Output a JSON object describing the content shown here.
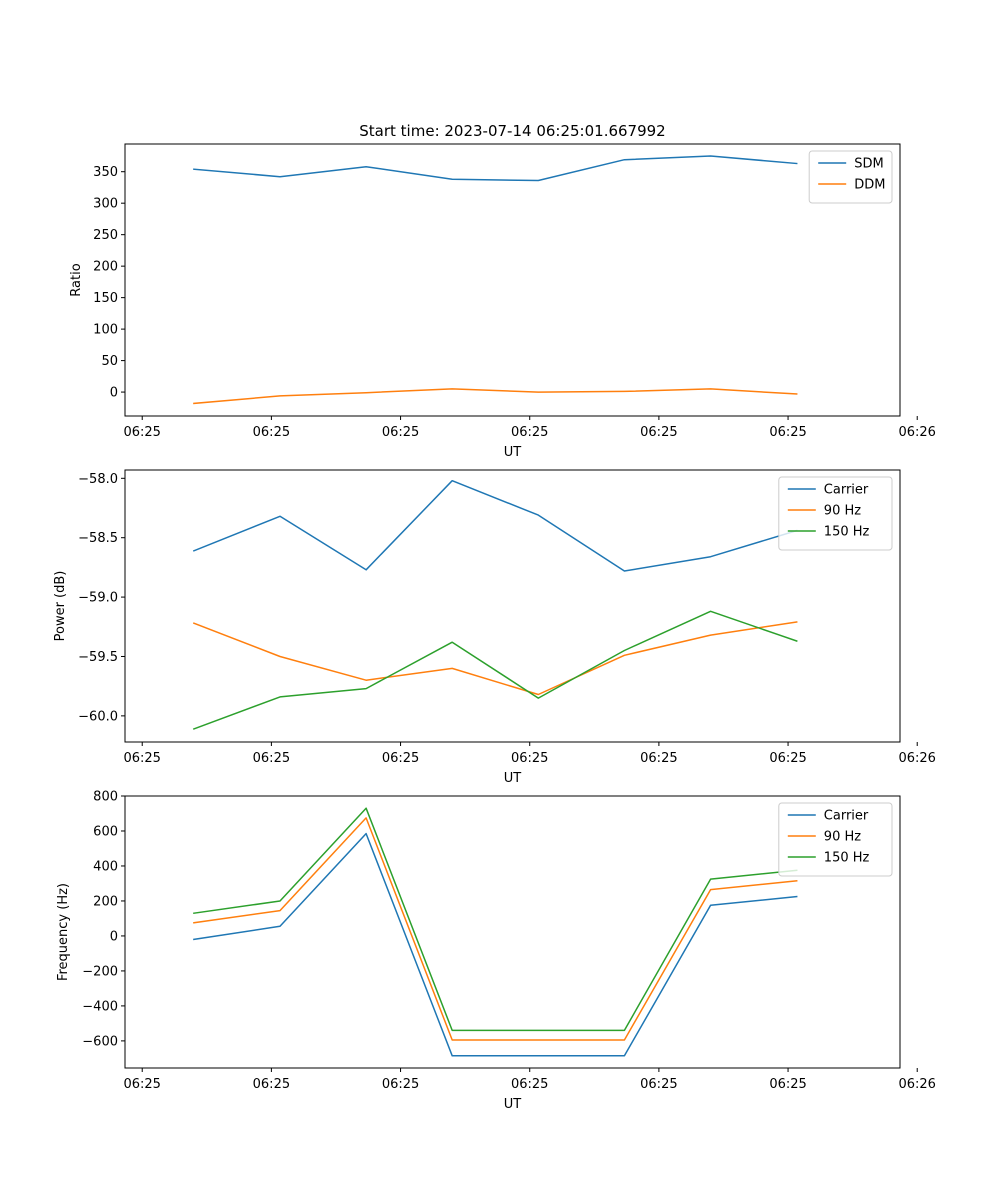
{
  "title": "Start time: 2023-07-14 06:25:01.667992",
  "chart_data": [
    {
      "type": "line",
      "xlabel": "UT",
      "ylabel": "Ratio",
      "x": [
        1,
        2,
        3,
        4,
        5,
        6,
        7,
        8
      ],
      "xlim": [
        0.2,
        9.2
      ],
      "xticks": [
        0.4,
        1.9,
        3.4,
        4.9,
        6.4,
        7.9,
        9.4
      ],
      "xtick_labels": [
        "06:25",
        "06:25",
        "06:25",
        "06:25",
        "06:25",
        "06:25",
        "06:26"
      ],
      "ylim": [
        -38,
        394
      ],
      "yticks": [
        0,
        50,
        100,
        150,
        200,
        250,
        300,
        350
      ],
      "ytick_labels": [
        "0",
        "50",
        "100",
        "150",
        "200",
        "250",
        "300",
        "350"
      ],
      "legend": "top-right",
      "series": [
        {
          "name": "SDM",
          "color": "#1f77b4",
          "values": [
            354,
            342,
            358,
            338,
            336,
            369,
            375,
            363
          ]
        },
        {
          "name": "DDM",
          "color": "#ff7f0e",
          "values": [
            -18,
            -6,
            -1,
            5,
            0,
            1,
            5,
            -3
          ]
        }
      ]
    },
    {
      "type": "line",
      "xlabel": "UT",
      "ylabel": "Power (dB)",
      "x": [
        1,
        2,
        3,
        4,
        5,
        6,
        7,
        8
      ],
      "xlim": [
        0.2,
        9.2
      ],
      "xticks": [
        0.4,
        1.9,
        3.4,
        4.9,
        6.4,
        7.9,
        9.4
      ],
      "xtick_labels": [
        "06:25",
        "06:25",
        "06:25",
        "06:25",
        "06:25",
        "06:25",
        "06:26"
      ],
      "ylim": [
        -60.22,
        -57.93
      ],
      "yticks": [
        -60.0,
        -59.5,
        -59.0,
        -58.5,
        -58.0
      ],
      "ytick_labels": [
        "−60.0",
        "−59.5",
        "−59.0",
        "−58.5",
        "−58.0"
      ],
      "legend": "top-right",
      "series": [
        {
          "name": "Carrier",
          "color": "#1f77b4",
          "values": [
            -58.61,
            -58.32,
            -58.77,
            -58.02,
            -58.31,
            -58.78,
            -58.66,
            -58.44
          ]
        },
        {
          "name": "90 Hz",
          "color": "#ff7f0e",
          "values": [
            -59.22,
            -59.5,
            -59.7,
            -59.6,
            -59.82,
            -59.49,
            -59.32,
            -59.21
          ]
        },
        {
          "name": "150 Hz",
          "color": "#2ca02c",
          "values": [
            -60.11,
            -59.84,
            -59.77,
            -59.38,
            -59.85,
            -59.45,
            -59.12,
            -59.37
          ]
        }
      ]
    },
    {
      "type": "line",
      "xlabel": "UT",
      "ylabel": "Frequency (Hz)",
      "x": [
        1,
        2,
        3,
        4,
        5,
        6,
        7,
        8
      ],
      "xlim": [
        0.2,
        9.2
      ],
      "xticks": [
        0.4,
        1.9,
        3.4,
        4.9,
        6.4,
        7.9,
        9.4
      ],
      "xtick_labels": [
        "06:25",
        "06:25",
        "06:25",
        "06:25",
        "06:25",
        "06:25",
        "06:26"
      ],
      "ylim": [
        -755,
        800
      ],
      "yticks": [
        -600,
        -400,
        -200,
        0,
        200,
        400,
        600,
        800
      ],
      "ytick_labels": [
        "−600",
        "−400",
        "−200",
        "0",
        "200",
        "400",
        "600",
        "800"
      ],
      "legend": "top-right",
      "series": [
        {
          "name": "Carrier",
          "color": "#1f77b4",
          "values": [
            -20,
            55,
            585,
            -685,
            -685,
            -685,
            175,
            225
          ]
        },
        {
          "name": "90 Hz",
          "color": "#ff7f0e",
          "values": [
            75,
            145,
            675,
            -595,
            -595,
            -595,
            265,
            315
          ]
        },
        {
          "name": "150 Hz",
          "color": "#2ca02c",
          "values": [
            130,
            200,
            730,
            -540,
            -540,
            -540,
            325,
            375
          ]
        }
      ]
    }
  ]
}
